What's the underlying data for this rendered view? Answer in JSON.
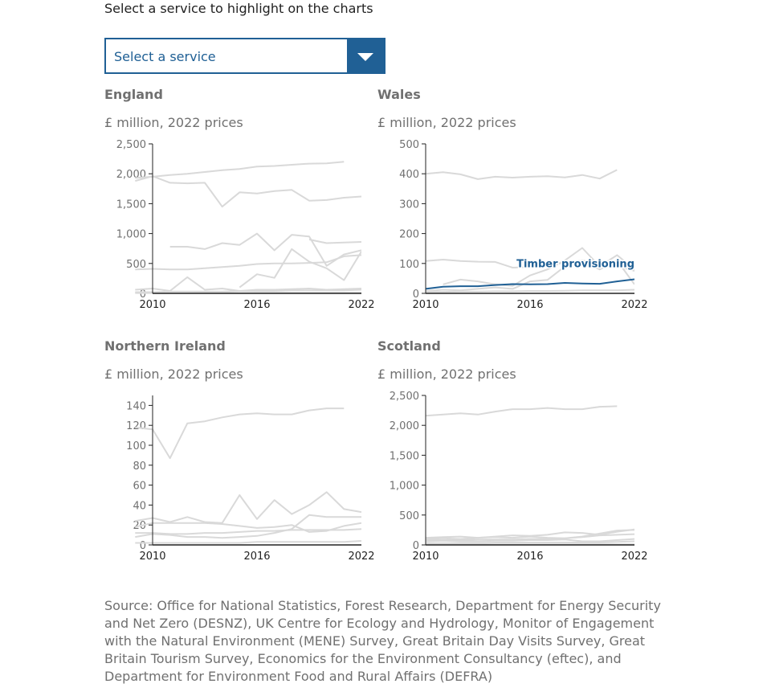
{
  "intro": "Select a service to highlight on the charts",
  "select": {
    "label": "Select a service"
  },
  "colors": {
    "highlight": "#206095",
    "muted": "#d9d9d9",
    "axis": "#222222",
    "text": "#707070"
  },
  "chart_data": [
    {
      "type": "line",
      "title": "England",
      "subtitle": "£ million, 2022 prices",
      "xlim": [
        2010,
        2022
      ],
      "ylim": [
        0,
        2500
      ],
      "xticks": [
        2010,
        2016,
        2022
      ],
      "yticks": [
        0,
        500,
        1000,
        1500,
        2000,
        2500
      ],
      "series": [
        {
          "x": [
            2009,
            2010,
            2011,
            2012,
            2013,
            2014,
            2015,
            2016,
            2017,
            2018,
            2019,
            2020,
            2021
          ],
          "values": [
            1930,
            1950,
            1980,
            2000,
            2030,
            2060,
            2080,
            2120,
            2130,
            2150,
            2170,
            2175,
            2200
          ]
        },
        {
          "x": [
            2009,
            2010,
            2011,
            2012,
            2013,
            2014,
            2015,
            2016,
            2017,
            2018,
            2019,
            2020,
            2021,
            2022
          ],
          "values": [
            1880,
            1960,
            1850,
            1840,
            1850,
            1450,
            1690,
            1670,
            1710,
            1730,
            1550,
            1560,
            1600,
            1620
          ]
        },
        {
          "x": [
            2011,
            2012,
            2013,
            2014,
            2015,
            2016,
            2017,
            2018,
            2019,
            2020,
            2021,
            2022
          ],
          "values": [
            780,
            780,
            740,
            840,
            810,
            1000,
            720,
            980,
            950,
            460,
            650,
            720
          ]
        },
        {
          "x": [
            2019,
            2020,
            2021,
            2022
          ],
          "values": [
            900,
            840,
            850,
            860
          ]
        },
        {
          "x": [
            2009,
            2010,
            2011,
            2012,
            2013,
            2014,
            2015,
            2016,
            2017,
            2018,
            2019,
            2020,
            2021,
            2022
          ],
          "values": [
            400,
            410,
            400,
            400,
            420,
            440,
            460,
            490,
            500,
            500,
            510,
            520,
            620,
            640
          ]
        },
        {
          "x": [
            2015,
            2016,
            2017,
            2018,
            2019,
            2020,
            2021,
            2022
          ],
          "values": [
            100,
            320,
            260,
            740,
            530,
            420,
            220,
            700
          ]
        },
        {
          "x": [
            2009,
            2010,
            2011,
            2012,
            2013,
            2014,
            2015,
            2016,
            2017,
            2018,
            2019,
            2020,
            2021,
            2022
          ],
          "values": [
            60,
            80,
            40,
            270,
            60,
            80,
            40,
            60,
            60,
            70,
            80,
            60,
            70,
            80
          ]
        },
        {
          "x": [
            2009,
            2010,
            2011,
            2012,
            2013,
            2014,
            2015,
            2016,
            2017,
            2018,
            2019,
            2020,
            2021,
            2022
          ],
          "values": [
            20,
            20,
            30,
            30,
            30,
            30,
            40,
            40,
            40,
            50,
            50,
            50,
            50,
            60
          ]
        },
        {
          "x": [
            2009,
            2010,
            2011,
            2012,
            2013,
            2014,
            2015,
            2016,
            2017,
            2018,
            2019,
            2020,
            2021,
            2022
          ],
          "values": [
            5,
            5,
            5,
            5,
            8,
            8,
            8,
            10,
            10,
            10,
            10,
            10,
            10,
            10
          ]
        }
      ]
    },
    {
      "type": "line",
      "title": "Wales",
      "subtitle": "£ million, 2022 prices",
      "xlim": [
        2010,
        2022
      ],
      "ylim": [
        0,
        500
      ],
      "xticks": [
        2010,
        2016,
        2022
      ],
      "yticks": [
        0,
        100,
        200,
        300,
        400,
        500
      ],
      "series": [
        {
          "x": [
            2010,
            2011,
            2012,
            2013,
            2014,
            2015,
            2016,
            2017,
            2018,
            2019,
            2020,
            2021
          ],
          "values": [
            400,
            405,
            398,
            382,
            390,
            387,
            390,
            392,
            388,
            396,
            384,
            413
          ]
        },
        {
          "x": [
            2010,
            2011,
            2012,
            2013,
            2014,
            2015,
            2016,
            2017,
            2018,
            2019,
            2020,
            2021,
            2022
          ],
          "values": [
            108,
            113,
            108,
            106,
            105,
            86,
            88,
            92,
            103,
            110,
            105,
            92,
            75
          ]
        },
        {
          "x": [
            2011,
            2012,
            2013,
            2014,
            2015,
            2016,
            2017,
            2018,
            2019,
            2020,
            2021,
            2022
          ],
          "values": [
            30,
            46,
            40,
            30,
            25,
            60,
            80,
            110,
            152,
            90,
            128,
            80
          ]
        },
        {
          "x": [
            2010,
            2011,
            2012,
            2013,
            2014,
            2015,
            2016,
            2017,
            2018,
            2019,
            2020,
            2021,
            2022
          ],
          "values": [
            8,
            12,
            10,
            15,
            20,
            15,
            40,
            45,
            90,
            110,
            80,
            110,
            30
          ]
        },
        {
          "x": [
            2010,
            2011,
            2012,
            2013,
            2014,
            2015,
            2016,
            2017,
            2018,
            2019,
            2020,
            2021,
            2022
          ],
          "values": [
            5,
            5,
            6,
            6,
            7,
            7,
            8,
            8,
            9,
            10,
            10,
            10,
            12
          ]
        },
        {
          "name": "Timber provisioning",
          "highlight": true,
          "x": [
            2010,
            2011,
            2012,
            2013,
            2014,
            2015,
            2016,
            2017,
            2018,
            2019,
            2020,
            2021,
            2022
          ],
          "values": [
            15,
            22,
            24,
            24,
            28,
            31,
            30,
            31,
            35,
            33,
            32,
            40,
            47
          ]
        }
      ],
      "annotations": [
        {
          "text": "Timber provisioning",
          "x": 2022,
          "y": 88
        }
      ]
    },
    {
      "type": "line",
      "title": "Northern Ireland",
      "subtitle": "£ million, 2022 prices",
      "xlim": [
        2010,
        2022
      ],
      "ylim": [
        0,
        150
      ],
      "xticks": [
        2010,
        2016,
        2022
      ],
      "yticks": [
        0,
        20,
        40,
        60,
        80,
        100,
        120,
        140
      ],
      "series": [
        {
          "x": [
            2009,
            2010,
            2011,
            2012,
            2013,
            2014,
            2015,
            2016,
            2017,
            2018,
            2019,
            2020,
            2021
          ],
          "values": [
            118,
            116,
            87,
            122,
            124,
            128,
            131,
            132,
            131,
            131,
            135,
            137,
            137
          ]
        },
        {
          "x": [
            2009,
            2010,
            2011,
            2012,
            2013,
            2014,
            2015,
            2016,
            2017,
            2018,
            2019,
            2020,
            2021,
            2022
          ],
          "values": [
            24,
            27,
            23,
            28,
            23,
            22,
            50,
            26,
            45,
            31,
            40,
            53,
            36,
            33
          ]
        },
        {
          "x": [
            2009,
            2010,
            2011,
            2012,
            2013,
            2014,
            2015,
            2016,
            2017,
            2018,
            2019,
            2020,
            2021,
            2022
          ],
          "values": [
            18,
            22,
            22,
            22,
            22,
            21,
            19,
            17,
            18,
            20,
            13,
            14,
            19,
            22
          ]
        },
        {
          "x": [
            2009,
            2010,
            2011,
            2012,
            2013,
            2014,
            2015,
            2016,
            2017,
            2018,
            2019,
            2020,
            2021,
            2022
          ],
          "values": [
            8,
            11,
            10,
            8,
            8,
            7,
            8,
            9,
            12,
            16,
            30,
            28,
            28,
            28
          ]
        },
        {
          "x": [
            2009,
            2010,
            2011,
            2012,
            2013,
            2014,
            2015,
            2016,
            2017,
            2018,
            2019,
            2020,
            2021,
            2022
          ],
          "values": [
            12,
            12,
            11,
            11,
            12,
            12,
            13,
            14,
            14,
            15,
            15,
            15,
            15,
            16
          ]
        },
        {
          "x": [
            2009,
            2010,
            2011,
            2012,
            2013,
            2014,
            2015,
            2016,
            2017,
            2018,
            2019,
            2020,
            2021,
            2022
          ],
          "values": [
            2,
            2,
            2,
            2,
            2,
            2,
            2,
            3,
            3,
            3,
            3,
            3,
            3,
            4
          ]
        }
      ]
    },
    {
      "type": "line",
      "title": "Scotland",
      "subtitle": "£ million, 2022 prices",
      "xlim": [
        2010,
        2022
      ],
      "ylim": [
        0,
        2500
      ],
      "xticks": [
        2010,
        2016,
        2022
      ],
      "yticks": [
        0,
        500,
        1000,
        1500,
        2000,
        2500
      ],
      "series": [
        {
          "x": [
            2010,
            2011,
            2012,
            2013,
            2014,
            2015,
            2016,
            2017,
            2018,
            2019,
            2020,
            2021
          ],
          "values": [
            2160,
            2180,
            2200,
            2180,
            2230,
            2270,
            2270,
            2290,
            2270,
            2270,
            2310,
            2320
          ]
        },
        {
          "x": [
            2010,
            2011,
            2012,
            2013,
            2014,
            2015,
            2016,
            2017,
            2018,
            2019,
            2020,
            2021,
            2022
          ],
          "values": [
            120,
            130,
            140,
            120,
            140,
            160,
            150,
            170,
            210,
            200,
            170,
            220,
            260
          ]
        },
        {
          "x": [
            2010,
            2011,
            2012,
            2013,
            2014,
            2015,
            2016,
            2017,
            2018,
            2019,
            2020,
            2021,
            2022
          ],
          "values": [
            100,
            110,
            100,
            120,
            130,
            120,
            140,
            120,
            110,
            140,
            190,
            240,
            250
          ]
        },
        {
          "x": [
            2010,
            2011,
            2012,
            2013,
            2014,
            2015,
            2016,
            2017,
            2018,
            2019,
            2020,
            2021,
            2022
          ],
          "values": [
            80,
            80,
            80,
            90,
            90,
            90,
            100,
            100,
            110,
            130,
            160,
            170,
            180
          ]
        },
        {
          "x": [
            2010,
            2011,
            2012,
            2013,
            2014,
            2015,
            2016,
            2017,
            2018,
            2019,
            2020,
            2021,
            2022
          ],
          "values": [
            60,
            70,
            60,
            60,
            70,
            70,
            80,
            80,
            90,
            60,
            60,
            80,
            100
          ]
        },
        {
          "x": [
            2010,
            2011,
            2012,
            2013,
            2014,
            2015,
            2016,
            2017,
            2018,
            2019,
            2020,
            2021,
            2022
          ],
          "values": [
            30,
            30,
            30,
            30,
            40,
            40,
            40,
            40,
            40,
            40,
            40,
            50,
            60
          ]
        },
        {
          "x": [
            2010,
            2011,
            2012,
            2013,
            2014,
            2015,
            2016,
            2017,
            2018,
            2019,
            2020,
            2021,
            2022
          ],
          "values": [
            10,
            10,
            10,
            10,
            10,
            10,
            10,
            10,
            10,
            10,
            10,
            10,
            10
          ]
        }
      ]
    }
  ],
  "source": "Source: Office for National Statistics, Forest Research, Department for Energy Security and Net Zero (DESNZ), UK Centre for Ecology and Hydrology, Monitor of Engagement with the Natural Environment (MENE) Survey, Great Britain Day Visits Survey, Great Britain Tourism Survey, Economics for the Environment Consultancy (eftec), and Department for Environment Food and Rural Affairs (DEFRA)"
}
